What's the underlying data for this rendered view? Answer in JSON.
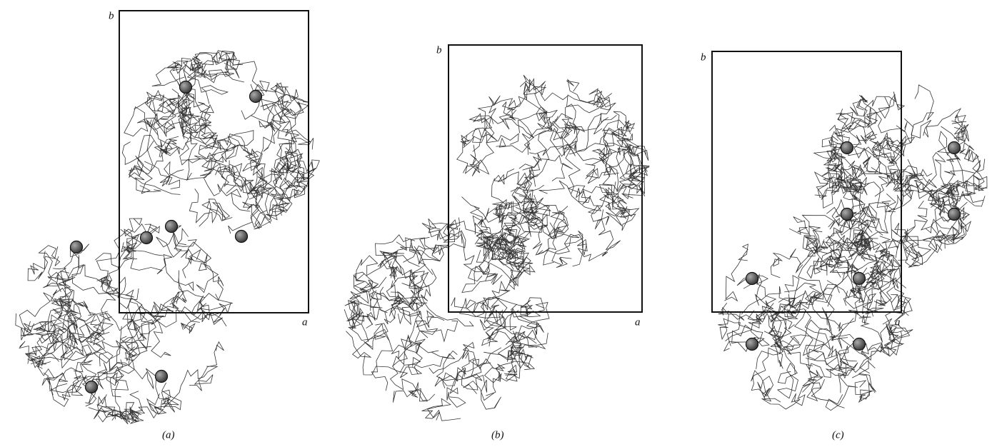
{
  "panels": [
    {
      "label": "(a)",
      "axis_b": "b",
      "axis_a": "a"
    },
    {
      "label": "(b)",
      "axis_b": "b",
      "axis_a": "a"
    },
    {
      "label": "(c)",
      "axis_b": "b",
      "axis_a": "a"
    }
  ]
}
